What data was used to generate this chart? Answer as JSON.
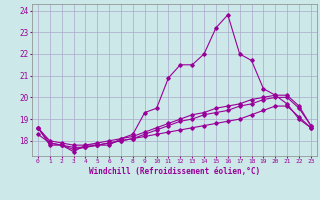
{
  "xlabel": "Windchill (Refroidissement éolien,°C)",
  "background_color": "#cce8e8",
  "grid_color": "#aaaacc",
  "line_color": "#990099",
  "x_values": [
    0,
    1,
    2,
    3,
    4,
    5,
    6,
    7,
    8,
    9,
    10,
    11,
    12,
    13,
    14,
    15,
    16,
    17,
    18,
    19,
    20,
    21,
    22,
    23
  ],
  "line1": [
    18.6,
    17.8,
    17.8,
    17.5,
    17.8,
    17.8,
    17.8,
    18.1,
    18.3,
    19.3,
    19.5,
    20.9,
    21.5,
    21.5,
    22.0,
    23.2,
    23.8,
    22.0,
    21.7,
    20.4,
    20.1,
    19.7,
    19.0,
    18.6
  ],
  "line2": [
    18.6,
    18.0,
    17.9,
    17.8,
    17.8,
    17.9,
    18.0,
    18.1,
    18.2,
    18.4,
    18.6,
    18.8,
    19.0,
    19.2,
    19.3,
    19.5,
    19.6,
    19.7,
    19.9,
    20.0,
    20.1,
    20.1,
    19.6,
    18.7
  ],
  "line3": [
    18.6,
    17.9,
    17.8,
    17.7,
    17.7,
    17.8,
    17.9,
    18.0,
    18.1,
    18.3,
    18.5,
    18.7,
    18.9,
    19.0,
    19.2,
    19.3,
    19.4,
    19.6,
    19.7,
    19.9,
    20.0,
    20.0,
    19.5,
    18.7
  ],
  "line4": [
    18.3,
    17.9,
    17.8,
    17.6,
    17.7,
    17.8,
    17.9,
    18.0,
    18.1,
    18.2,
    18.3,
    18.4,
    18.5,
    18.6,
    18.7,
    18.8,
    18.9,
    19.0,
    19.2,
    19.4,
    19.6,
    19.6,
    19.1,
    18.6
  ],
  "ylim_min": 17.3,
  "ylim_max": 24.3,
  "yticks": [
    18,
    19,
    20,
    21,
    22,
    23,
    24
  ],
  "xticks": [
    0,
    1,
    2,
    3,
    4,
    5,
    6,
    7,
    8,
    9,
    10,
    11,
    12,
    13,
    14,
    15,
    16,
    17,
    18,
    19,
    20,
    21,
    22,
    23
  ]
}
